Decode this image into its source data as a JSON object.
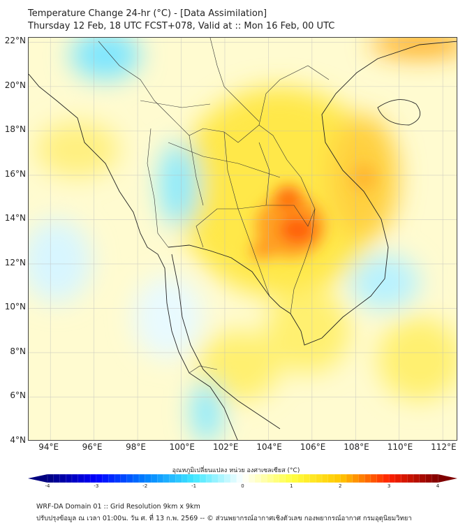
{
  "header": {
    "title": "Temperature Change 24-hr (°C) - [Data Assimilation]",
    "subtitle": "Thursday 12 Feb, 18 UTC FCST+078, Valid at :: Mon 16 Feb, 00 UTC"
  },
  "map": {
    "lon_range": [
      93,
      112.7
    ],
    "lat_range": [
      4,
      22.2
    ],
    "lon_ticks": [
      {
        "value": 94,
        "label": "94°E"
      },
      {
        "value": 96,
        "label": "96°E"
      },
      {
        "value": 98,
        "label": "98°E"
      },
      {
        "value": 100,
        "label": "100°E"
      },
      {
        "value": 102,
        "label": "102°E"
      },
      {
        "value": 104,
        "label": "104°E"
      },
      {
        "value": 106,
        "label": "106°E"
      },
      {
        "value": 108,
        "label": "108°E"
      },
      {
        "value": 110,
        "label": "110°E"
      },
      {
        "value": 112,
        "label": "112°E"
      }
    ],
    "lat_ticks": [
      {
        "value": 4,
        "label": "4°N"
      },
      {
        "value": 6,
        "label": "6°N"
      },
      {
        "value": 8,
        "label": "8°N"
      },
      {
        "value": 10,
        "label": "10°N"
      },
      {
        "value": 12,
        "label": "12°N"
      },
      {
        "value": 14,
        "label": "14°N"
      },
      {
        "value": 16,
        "label": "16°N"
      },
      {
        "value": 18,
        "label": "18°N"
      },
      {
        "value": 20,
        "label": "20°N"
      },
      {
        "value": 22,
        "label": "22°N"
      }
    ],
    "features": [
      {
        "lon": 105.2,
        "lat": 13.6,
        "value": 3.0
      },
      {
        "lon": 105.0,
        "lat": 14.9,
        "value": 2.7
      },
      {
        "lon": 103.8,
        "lat": 12.5,
        "value": 2.2
      },
      {
        "lon": 108.5,
        "lat": 15.7,
        "value": 1.8
      },
      {
        "lon": 111.5,
        "lat": 22.0,
        "value": 2.0
      },
      {
        "lon": 96.5,
        "lat": 21.6,
        "value": -1.0
      },
      {
        "lon": 100.0,
        "lat": 16.0,
        "value": -1.0
      },
      {
        "lon": 101.2,
        "lat": 5.3,
        "value": -1.0
      },
      {
        "lon": 108.5,
        "lat": 11.0,
        "value": -0.6
      }
    ]
  },
  "colorbar": {
    "label": "อุณหภูมิเปลี่ยนแปลง หน่วย องศาเซลเซียส (°C)",
    "min": -4,
    "max": 4,
    "ticks": [
      "-4",
      "-3",
      "-2",
      "-1",
      "0",
      "1",
      "2",
      "3",
      "4"
    ],
    "colors": [
      "#00007f",
      "#0000ff",
      "#0080ff",
      "#40e8ff",
      "#ffffff",
      "#ffff40",
      "#ffc800",
      "#ff2000",
      "#7f0000"
    ]
  },
  "footer": {
    "line1": "WRF-DA Domain 01 :: Grid Resolution 9km x 9km",
    "line2": "ปรับปรุงข้อมูล ณ เวลา 01:00น. วัน ศ. ที่ 13 ก.พ. 2569 -- © ส่วนพยากรณ์อากาศเชิงตัวเลข กองพยากรณ์อากาศ กรมอุตุนิยมวิทยา"
  }
}
